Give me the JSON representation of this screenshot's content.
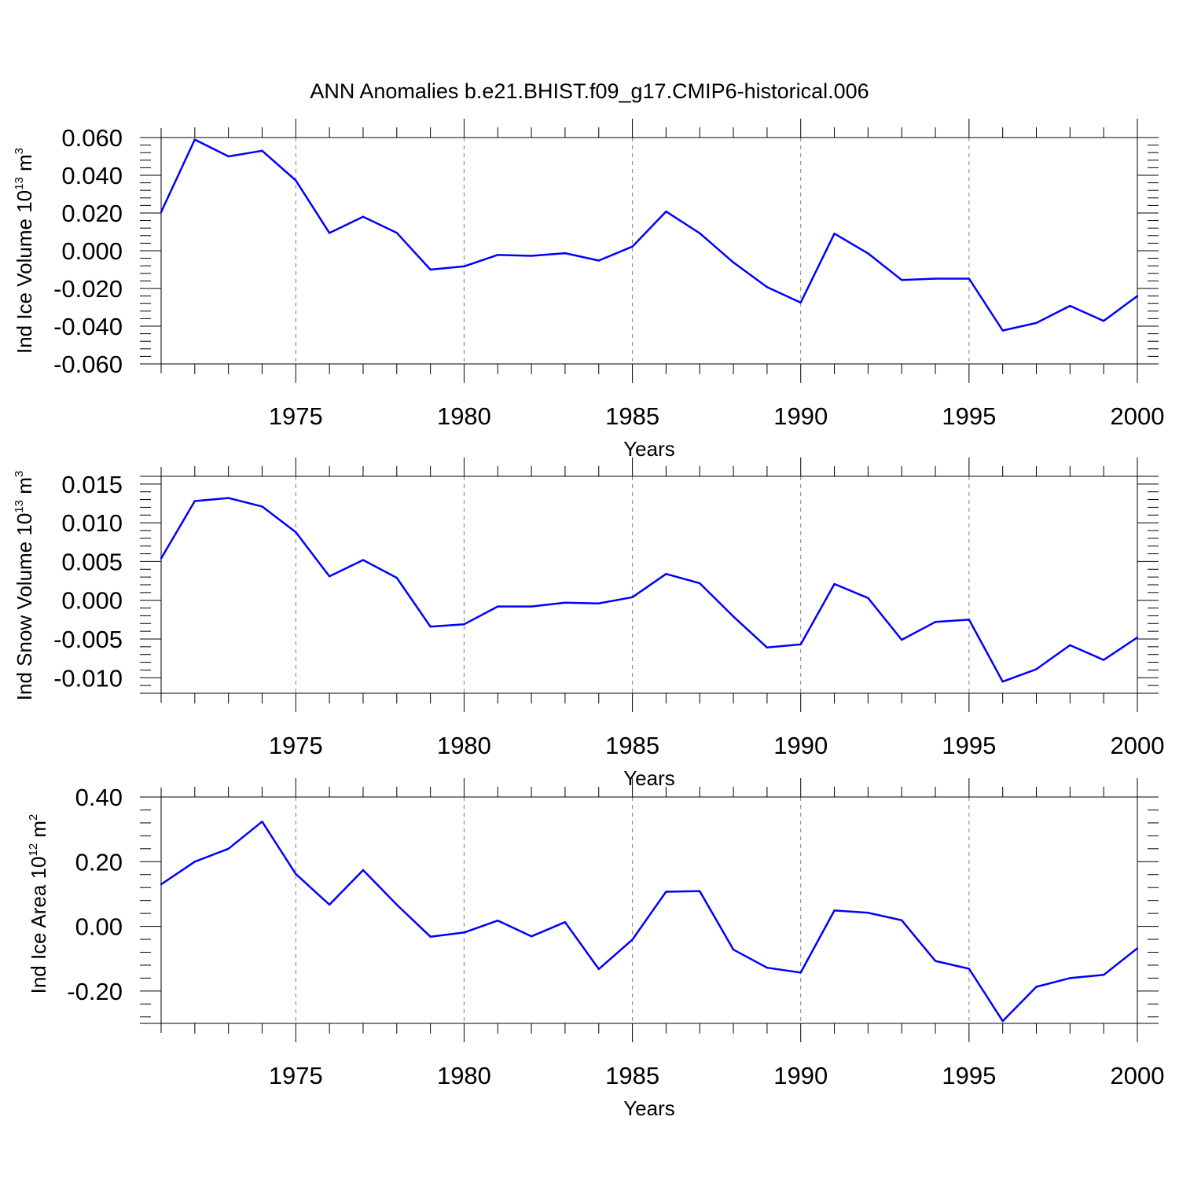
{
  "title": "ANN Anomalies b.e21.BHIST.f09_g17.CMIP6-historical.006",
  "colors": {
    "line": "#0000ff",
    "axis": "#000000",
    "grid": "#7f7f7f"
  },
  "chart_data": [
    {
      "type": "line",
      "ylabel": {
        "main": "Ind Ice Volume 10",
        "exp": "13",
        "unit": " m",
        "unit_exp": "3"
      },
      "xlabel": "Years",
      "xlim": [
        1971,
        2000
      ],
      "ylim": [
        -0.06,
        0.06
      ],
      "yticks": [
        0.06,
        0.04,
        0.02,
        0.0,
        -0.02,
        -0.04,
        -0.06
      ],
      "yticklabels": [
        "0.060",
        "0.040",
        "0.020",
        "0.000",
        "-0.020",
        "-0.040",
        "-0.060"
      ],
      "xticks": [
        1975,
        1980,
        1985,
        1990,
        1995,
        2000
      ],
      "xticklabels": [
        "1975",
        "1980",
        "1985",
        "1990",
        "1995",
        "2000"
      ],
      "grid_x": [
        1975,
        1980,
        1985,
        1990,
        1995
      ],
      "x": [
        1971,
        1972,
        1973,
        1974,
        1975,
        1976,
        1977,
        1978,
        1979,
        1980,
        1981,
        1982,
        1983,
        1984,
        1985,
        1986,
        1987,
        1988,
        1989,
        1990,
        1991,
        1992,
        1993,
        1994,
        1995,
        1996,
        1997,
        1998,
        1999,
        2000
      ],
      "y": [
        0.0205,
        0.0589,
        0.05,
        0.053,
        0.0373,
        0.0094,
        0.018,
        0.0095,
        -0.01,
        -0.0083,
        -0.0022,
        -0.0027,
        -0.0013,
        -0.0052,
        0.0022,
        0.0208,
        0.0093,
        -0.0062,
        -0.0193,
        -0.0275,
        0.0091,
        -0.0014,
        -0.0155,
        -0.0148,
        -0.0148,
        -0.0423,
        -0.0383,
        -0.0292,
        -0.0372,
        -0.024
      ]
    },
    {
      "type": "line",
      "ylabel": {
        "main": "Ind Snow Volume 10",
        "exp": "13",
        "unit": " m",
        "unit_exp": "3"
      },
      "xlabel": "Years",
      "xlim": [
        1971,
        2000
      ],
      "ylim": [
        -0.012,
        0.016
      ],
      "yticks": [
        0.015,
        0.01,
        0.005,
        0.0,
        -0.005,
        -0.01
      ],
      "yticklabels": [
        "0.015",
        "0.010",
        "0.005",
        "0.000",
        "-0.005",
        "-0.010"
      ],
      "xticks": [
        1975,
        1980,
        1985,
        1990,
        1995,
        2000
      ],
      "xticklabels": [
        "1975",
        "1980",
        "1985",
        "1990",
        "1995",
        "2000"
      ],
      "grid_x": [
        1975,
        1980,
        1985,
        1990,
        1995
      ],
      "x": [
        1971,
        1972,
        1973,
        1974,
        1975,
        1976,
        1977,
        1978,
        1979,
        1980,
        1981,
        1982,
        1983,
        1984,
        1985,
        1986,
        1987,
        1988,
        1989,
        1990,
        1991,
        1992,
        1993,
        1994,
        1995,
        1996,
        1997,
        1998,
        1999,
        2000
      ],
      "y": [
        0.0054,
        0.0128,
        0.0132,
        0.0121,
        0.0088,
        0.0031,
        0.0052,
        0.0029,
        -0.0034,
        -0.0031,
        -0.0008,
        -0.0008,
        -0.0003,
        -0.0004,
        0.0004,
        0.0034,
        0.0022,
        -0.0021,
        -0.0061,
        -0.0057,
        0.0021,
        0.0003,
        -0.0051,
        -0.0028,
        -0.0025,
        -0.0105,
        -0.0089,
        -0.0058,
        -0.0077,
        -0.0048
      ]
    },
    {
      "type": "line",
      "ylabel": {
        "main": "Ind Ice Area 10",
        "exp": "12",
        "unit": " m",
        "unit_exp": "2"
      },
      "xlabel": "Years",
      "xlim": [
        1971,
        2000
      ],
      "ylim": [
        -0.3,
        0.4
      ],
      "yticks": [
        0.4,
        0.2,
        0.0,
        -0.2
      ],
      "yticklabels": [
        "0.40",
        "0.20",
        "0.00",
        "-0.20"
      ],
      "xticks": [
        1975,
        1980,
        1985,
        1990,
        1995,
        2000
      ],
      "xticklabels": [
        "1975",
        "1980",
        "1985",
        "1990",
        "1995",
        "2000"
      ],
      "grid_x": [
        1975,
        1980,
        1985,
        1990,
        1995
      ],
      "x": [
        1971,
        1972,
        1973,
        1974,
        1975,
        1976,
        1977,
        1978,
        1979,
        1980,
        1981,
        1982,
        1983,
        1984,
        1985,
        1986,
        1987,
        1988,
        1989,
        1990,
        1991,
        1992,
        1993,
        1994,
        1995,
        1996,
        1997,
        1998,
        1999,
        2000
      ],
      "y": [
        0.13,
        0.2,
        0.24,
        0.324,
        0.162,
        0.067,
        0.174,
        0.067,
        -0.032,
        -0.019,
        0.018,
        -0.031,
        0.013,
        -0.132,
        -0.041,
        0.107,
        0.109,
        -0.072,
        -0.128,
        -0.143,
        0.049,
        0.042,
        0.019,
        -0.107,
        -0.131,
        -0.293,
        -0.187,
        -0.16,
        -0.15,
        -0.068
      ]
    }
  ]
}
